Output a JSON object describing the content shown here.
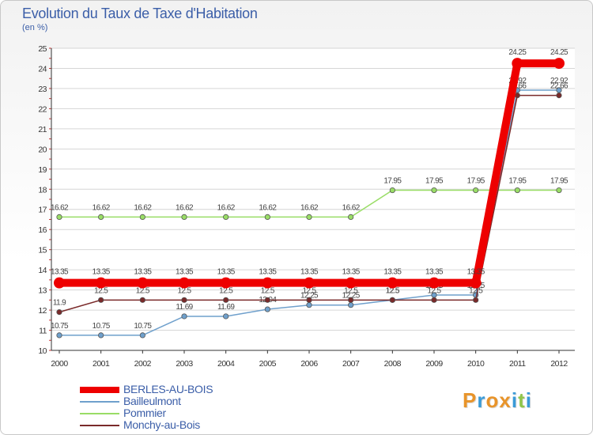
{
  "chart_data": {
    "type": "line",
    "title": "Evolution du Taux de Taxe d'Habitation",
    "unit": "(en %)",
    "categories": [
      "2000",
      "2001",
      "2002",
      "2003",
      "2004",
      "2005",
      "2006",
      "2007",
      "2008",
      "2009",
      "2010",
      "2011",
      "2012"
    ],
    "ylim": [
      10,
      25
    ],
    "yticks": [
      10,
      11,
      12,
      13,
      14,
      15,
      16,
      17,
      18,
      19,
      20,
      21,
      22,
      23,
      24,
      25
    ],
    "series": [
      {
        "name": "Pommier",
        "color": "#99dd66",
        "values": [
          16.62,
          16.62,
          16.62,
          16.62,
          16.62,
          16.62,
          16.62,
          16.62,
          17.95,
          17.95,
          17.95,
          17.95,
          17.95
        ],
        "labels": [
          "16.62",
          "16.62",
          "16.62",
          "16.62",
          "16.62",
          "16.62",
          "16.62",
          "16.62",
          "17.95",
          "17.95",
          "17.95",
          "17.95",
          "17.95"
        ]
      },
      {
        "name": "Bailleulmont",
        "color": "#6fa0cc",
        "values": [
          10.75,
          10.75,
          10.75,
          11.69,
          11.69,
          12.04,
          12.25,
          12.25,
          12.5,
          12.75,
          12.75,
          22.92,
          22.92
        ],
        "labels": [
          "10.75",
          "10.75",
          "10.75",
          "11.69",
          "11.69",
          "12.04",
          "12.25",
          "12.25",
          "12.5",
          "12.75",
          "12.75",
          "22.92",
          "22.92"
        ]
      },
      {
        "name": "Monchy-au-Bois",
        "color": "#7a2a2a",
        "values": [
          11.9,
          12.5,
          12.5,
          12.5,
          12.5,
          12.5,
          12.5,
          12.5,
          12.5,
          12.5,
          12.5,
          22.66,
          22.66
        ],
        "labels": [
          "11.9",
          "12.5",
          "12.5",
          "12.5",
          "12.5",
          "12.5",
          "12.5",
          "12.5",
          "12.5",
          "12.5",
          "12.5",
          "22.66",
          "22.66"
        ]
      },
      {
        "name": "BERLES-AU-BOIS",
        "color": "#ee0000",
        "values": [
          13.35,
          13.35,
          13.35,
          13.35,
          13.35,
          13.35,
          13.35,
          13.35,
          13.35,
          13.35,
          13.35,
          24.25,
          24.25
        ],
        "labels": [
          "13.35",
          "13.35",
          "13.35",
          "13.35",
          "13.35",
          "13.35",
          "13.35",
          "13.35",
          "13.35",
          "13.35",
          "13.35",
          "24.25",
          "24.25"
        ]
      }
    ],
    "legend": [
      "BERLES-AU-BOIS",
      "Bailleulmont",
      "Pommier",
      "Monchy-au-Bois"
    ]
  },
  "logo": {
    "letters": [
      "P",
      "r",
      "o",
      "x",
      "i",
      "t",
      "i"
    ],
    "colors": [
      "#e8942a",
      "#3a9bd8",
      "#e8942a",
      "#e8942a",
      "#3a9bd8",
      "#8fc64a",
      "#3a9bd8"
    ]
  }
}
